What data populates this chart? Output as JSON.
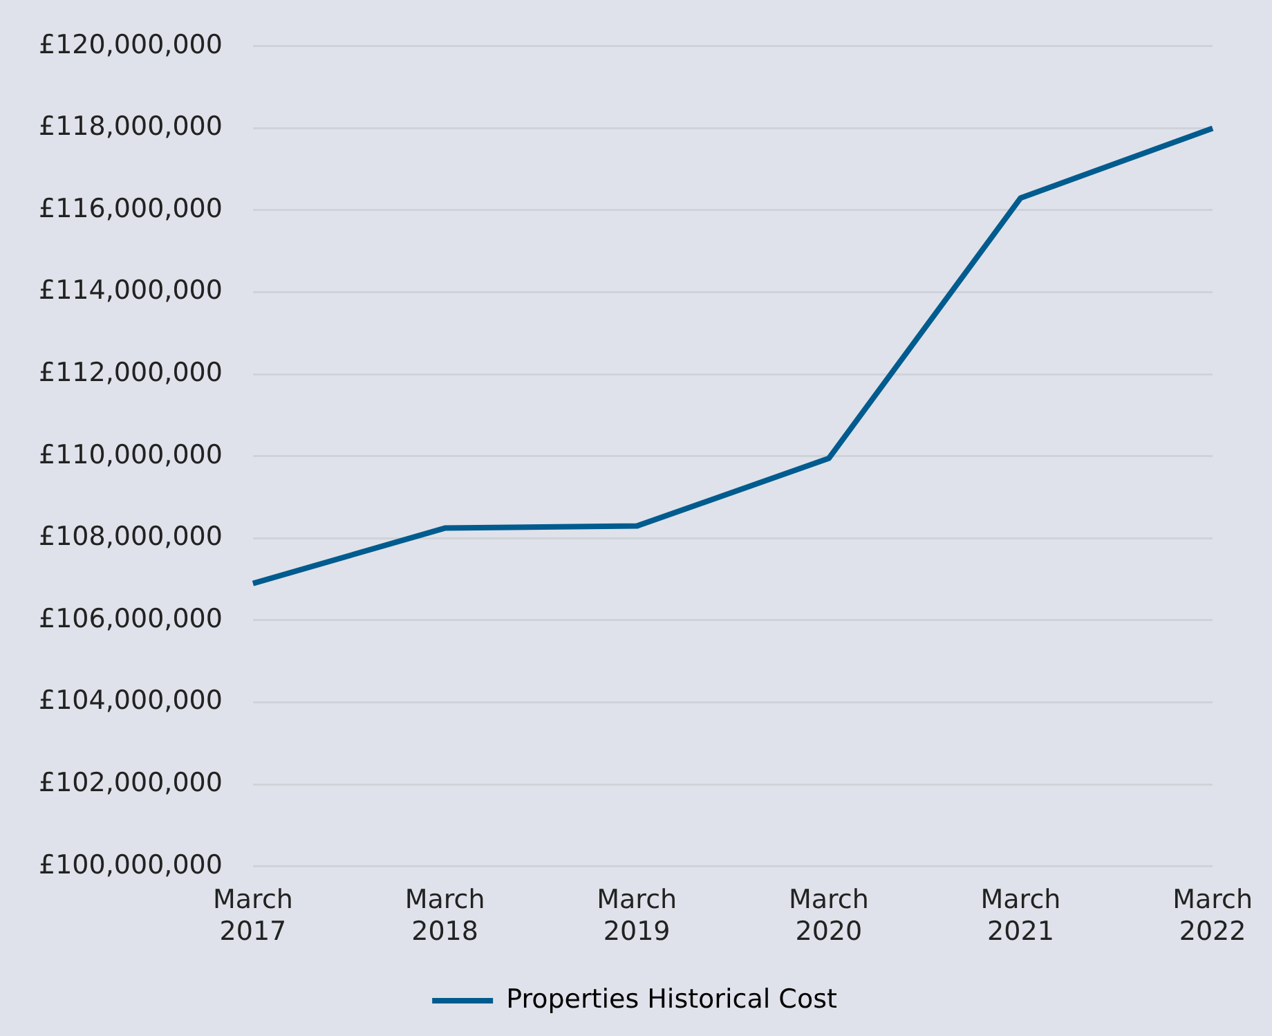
{
  "chart_data": {
    "type": "line",
    "categories": [
      "March 2017",
      "March 2018",
      "March 2019",
      "March 2020",
      "March 2021",
      "March 2022"
    ],
    "series": [
      {
        "name": "Properties Historical Cost",
        "color": "#005b8e",
        "values": [
          106900000,
          108250000,
          108300000,
          109950000,
          116300000,
          118000000
        ]
      }
    ],
    "ylim": [
      100000000,
      120000000
    ],
    "yticks": [
      {
        "value": 100000000,
        "label": "£100,000,000"
      },
      {
        "value": 102000000,
        "label": "£102,000,000"
      },
      {
        "value": 104000000,
        "label": "£104,000,000"
      },
      {
        "value": 106000000,
        "label": "£106,000,000"
      },
      {
        "value": 108000000,
        "label": "£108,000,000"
      },
      {
        "value": 110000000,
        "label": "£110,000,000"
      },
      {
        "value": 112000000,
        "label": "£112,000,000"
      },
      {
        "value": 114000000,
        "label": "£114,000,000"
      },
      {
        "value": 116000000,
        "label": "£116,000,000"
      },
      {
        "value": 118000000,
        "label": "£118,000,000"
      },
      {
        "value": 120000000,
        "label": "£120,000,000"
      }
    ],
    "grid": "y",
    "legend": "bottom",
    "marker": "none",
    "line_style": "solid"
  }
}
